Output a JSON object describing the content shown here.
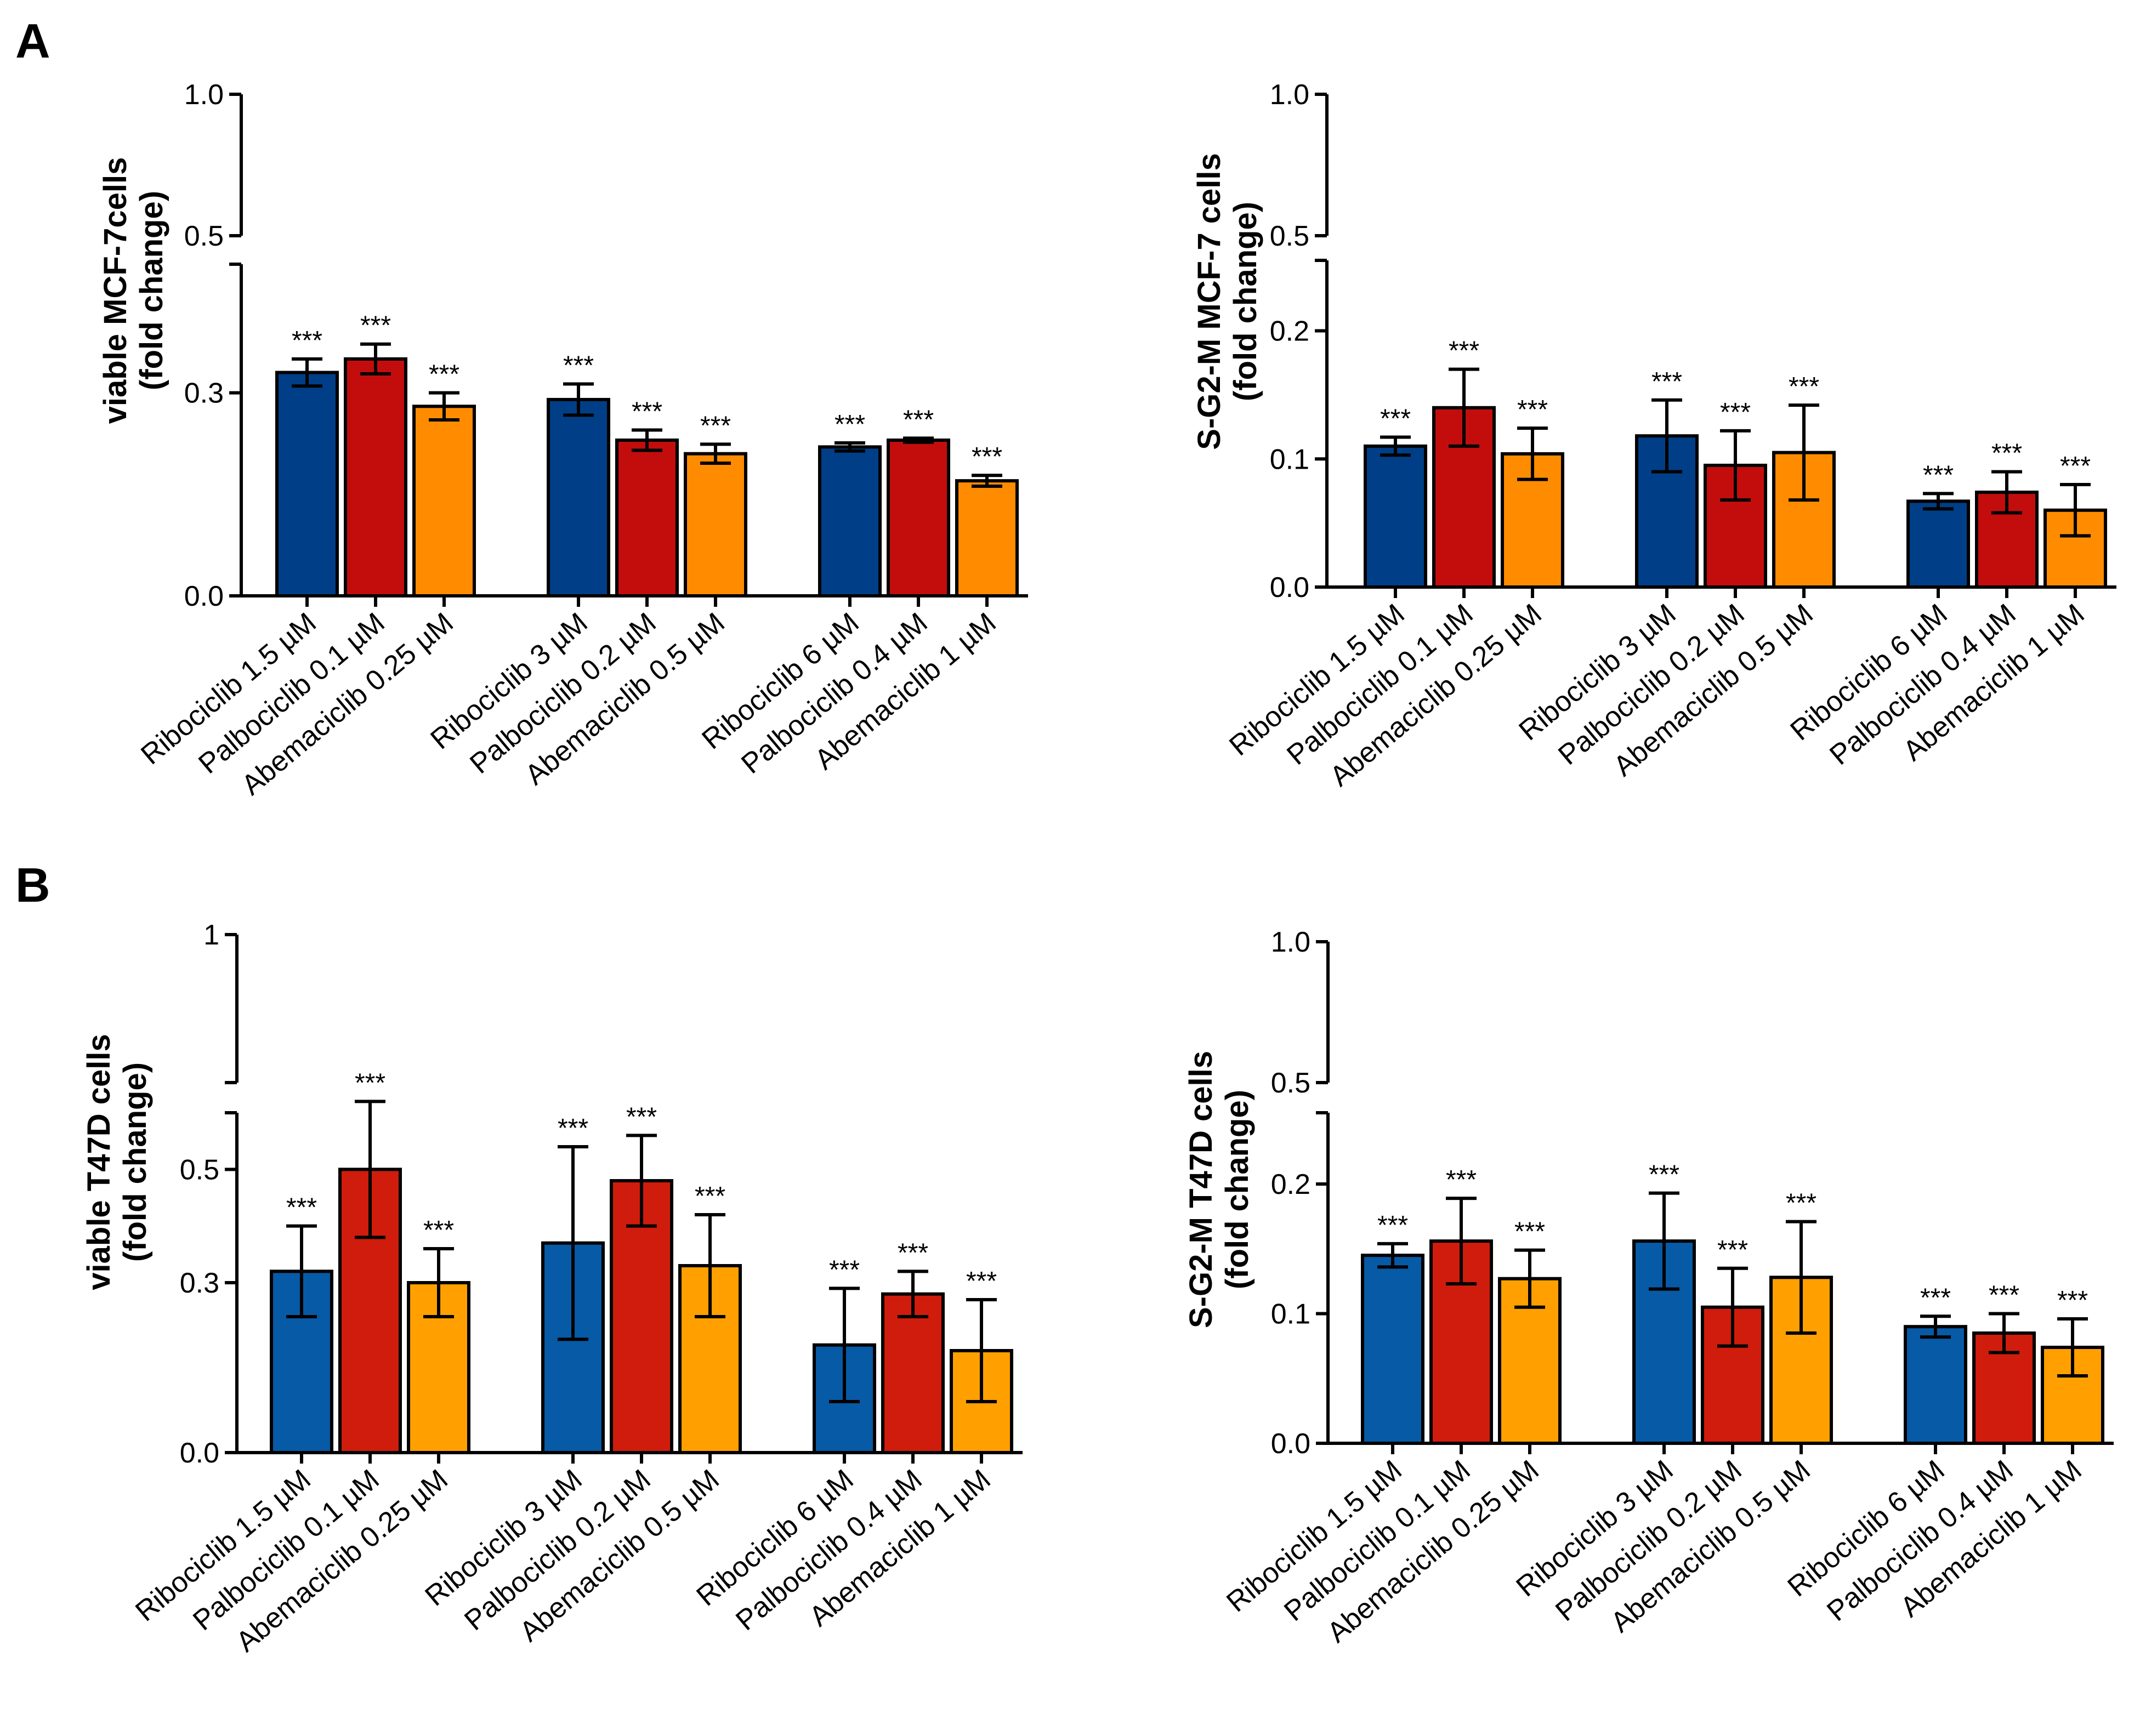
{
  "panel_letters": [
    "A",
    "B"
  ],
  "colors": {
    "ribociclib": "#003f87",
    "palbociclib": "#c30d0d",
    "abemaciclib": "#ff8c00",
    "ribociclib_b": "#075aa5",
    "palbociclib_b": "#d01c0c",
    "abemaciclib_b": "#ffa000"
  },
  "chart_data": [
    {
      "panel": "A",
      "type": "bar",
      "ylabel_lines": [
        "viable MCF-7cells",
        "(fold change)"
      ],
      "yticks_lower": [
        "0.0",
        "0.3"
      ],
      "yticks_upper": [
        "0.5",
        "1.0"
      ],
      "axis_break": true,
      "lower_range": [
        0,
        0.49
      ],
      "upper_range": [
        0.5,
        1.0
      ],
      "categories": [
        "Ribociclib 1.5 µM",
        "Palbociclib 0.1 µM",
        "Abemaciclib 0.25 µM",
        "Ribociclib 3 µM",
        "Palbociclib 0.2 µM",
        "Abemaciclib 0.5 µM",
        "Ribociclib 6 µM",
        "Palbociclib 0.4 µM",
        "Abemaciclib 1 µM"
      ],
      "groups": [
        3,
        3,
        3
      ],
      "values": [
        0.33,
        0.35,
        0.28,
        0.29,
        0.23,
        0.21,
        0.22,
        0.23,
        0.17
      ],
      "errors": [
        0.02,
        0.022,
        0.02,
        0.023,
        0.015,
        0.014,
        0.006,
        0.003,
        0.008
      ],
      "significance": [
        "***",
        "***",
        "***",
        "***",
        "***",
        "***",
        "***",
        "***",
        "***"
      ],
      "bar_colors": [
        "#003f87",
        "#c30d0d",
        "#ff8c00",
        "#003f87",
        "#c30d0d",
        "#ff8c00",
        "#003f87",
        "#c30d0d",
        "#ff8c00"
      ]
    },
    {
      "panel": "A",
      "type": "bar",
      "ylabel_lines": [
        "S-G2-M MCF-7 cells",
        "(fold change)"
      ],
      "yticks_lower": [
        "0.0",
        "0.1",
        "0.2"
      ],
      "yticks_upper": [
        "0.5",
        "1.0"
      ],
      "axis_break": true,
      "lower_range": [
        0,
        0.25
      ],
      "upper_range": [
        0.5,
        1.0
      ],
      "categories": [
        "Ribociclib 1.5 µM",
        "Palbociclib 0.1 µM",
        "Abemaciclib 0.25 µM",
        "Ribociclib 3 µM",
        "Palbociclib 0.2 µM",
        "Abemaciclib 0.5 µM",
        "Ribociclib 6 µM",
        "Palbociclib 0.4 µM",
        "Abemaciclib 1 µM"
      ],
      "groups": [
        3,
        3,
        3
      ],
      "values": [
        0.11,
        0.14,
        0.104,
        0.118,
        0.095,
        0.105,
        0.067,
        0.074,
        0.06
      ],
      "errors": [
        0.007,
        0.03,
        0.02,
        0.028,
        0.027,
        0.037,
        0.006,
        0.016,
        0.02
      ],
      "significance": [
        "***",
        "***",
        "***",
        "***",
        "***",
        "***",
        "***",
        "***",
        "***"
      ],
      "bar_colors": [
        "#003f87",
        "#c30d0d",
        "#ff8c00",
        "#003f87",
        "#c30d0d",
        "#ff8c00",
        "#003f87",
        "#c30d0d",
        "#ff8c00"
      ]
    },
    {
      "panel": "B",
      "type": "bar",
      "ylabel_lines": [
        "viable T47D cells",
        "(fold change)"
      ],
      "yticks_lower": [
        "0.0",
        "0.3",
        "0.5"
      ],
      "yticks_upper": [
        "1"
      ],
      "axis_break": true,
      "lower_range": [
        0,
        0.6
      ],
      "upper_range": [
        0.6,
        1.0
      ],
      "categories": [
        "Ribociclib 1.5 µM",
        "Palbociclib 0.1 µM",
        "Abemaciclib 0.25 µM",
        "Ribociclib 3 µM",
        "Palbociclib 0.2 µM",
        "Abemaciclib 0.5 µM",
        "Ribociclib 6 µM",
        "Palbociclib 0.4 µM",
        "Abemaciclib 1 µM"
      ],
      "groups": [
        3,
        3,
        3
      ],
      "values": [
        0.32,
        0.5,
        0.3,
        0.37,
        0.48,
        0.33,
        0.19,
        0.28,
        0.18
      ],
      "errors": [
        0.08,
        0.12,
        0.06,
        0.17,
        0.08,
        0.09,
        0.1,
        0.04,
        0.09
      ],
      "significance": [
        "***",
        "***",
        "***",
        "***",
        "***",
        "***",
        "***",
        "***",
        "***"
      ],
      "bar_colors": [
        "#075aa5",
        "#d01c0c",
        "#ffa000",
        "#075aa5",
        "#d01c0c",
        "#ffa000",
        "#075aa5",
        "#d01c0c",
        "#ffa000"
      ]
    },
    {
      "panel": "B",
      "type": "bar",
      "ylabel_lines": [
        "S-G2-M T47D cells",
        "(fold change)"
      ],
      "yticks_lower": [
        "0.0",
        "0.1",
        "0.2"
      ],
      "yticks_upper": [
        "0.5",
        "1.0"
      ],
      "axis_break": true,
      "lower_range": [
        0,
        0.25
      ],
      "upper_range": [
        0.5,
        1.0
      ],
      "categories": [
        "Ribociclib 1.5 µM",
        "Palbociclib 0.1 µM",
        "Abemaciclib 0.25 µM",
        "Ribociclib 3 µM",
        "Palbociclib 0.2 µM",
        "Abemaciclib 0.5 µM",
        "Ribociclib 6 µM",
        "Palbociclib 0.4 µM",
        "Abemaciclib 1 µM"
      ],
      "groups": [
        3,
        3,
        3
      ],
      "values": [
        0.145,
        0.156,
        0.127,
        0.156,
        0.105,
        0.128,
        0.09,
        0.085,
        0.074
      ],
      "errors": [
        0.009,
        0.033,
        0.022,
        0.037,
        0.03,
        0.043,
        0.008,
        0.015,
        0.022
      ],
      "significance": [
        "***",
        "***",
        "***",
        "***",
        "***",
        "***",
        "***",
        "***",
        "***"
      ],
      "bar_colors": [
        "#075aa5",
        "#d01c0c",
        "#ffa000",
        "#075aa5",
        "#d01c0c",
        "#ffa000",
        "#075aa5",
        "#d01c0c",
        "#ffa000"
      ]
    }
  ]
}
